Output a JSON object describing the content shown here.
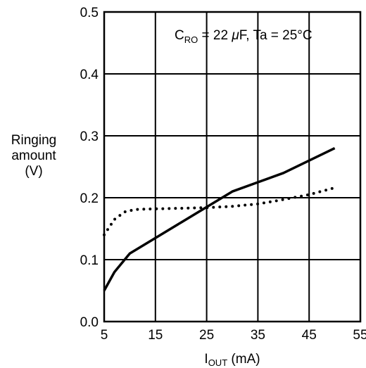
{
  "chart_data": {
    "type": "line",
    "annotation": {
      "c_main": "C",
      "c_sub": "RO",
      "c_rest": " = 22 ",
      "mu": "μ",
      "c_unit": "F,  Ta = 25°C"
    },
    "xlabel": {
      "main": "I",
      "sub": "OUT",
      "unit": " (mA)"
    },
    "ylabel": [
      "Ringing",
      "amount",
      "(V)"
    ],
    "xlim": [
      5,
      55
    ],
    "ylim": [
      0.0,
      0.5
    ],
    "x_ticks": [
      "5",
      "15",
      "25",
      "35",
      "45",
      "55"
    ],
    "y_ticks": [
      "0.0",
      "0.1",
      "0.2",
      "0.3",
      "0.4",
      "0.5"
    ],
    "x_gridlines": [
      5,
      15,
      25,
      35,
      45,
      55
    ],
    "y_gridlines": [
      0.0,
      0.1,
      0.2,
      0.3,
      0.4,
      0.5
    ],
    "grid": true,
    "series": [
      {
        "style": "solid",
        "color": "#000000",
        "points": [
          [
            5,
            0.05
          ],
          [
            7,
            0.08
          ],
          [
            10,
            0.11
          ],
          [
            15,
            0.135
          ],
          [
            20,
            0.16
          ],
          [
            25,
            0.185
          ],
          [
            30,
            0.21
          ],
          [
            35,
            0.225
          ],
          [
            40,
            0.24
          ],
          [
            45,
            0.26
          ],
          [
            50,
            0.28
          ]
        ]
      },
      {
        "style": "dotted",
        "color": "#000000",
        "points": [
          [
            5,
            0.14
          ],
          [
            7,
            0.165
          ],
          [
            9,
            0.177
          ],
          [
            11,
            0.181
          ],
          [
            15,
            0.182
          ],
          [
            20,
            0.183
          ],
          [
            25,
            0.184
          ],
          [
            30,
            0.186
          ],
          [
            35,
            0.19
          ],
          [
            40,
            0.197
          ],
          [
            45,
            0.205
          ],
          [
            50,
            0.216
          ]
        ]
      }
    ]
  }
}
